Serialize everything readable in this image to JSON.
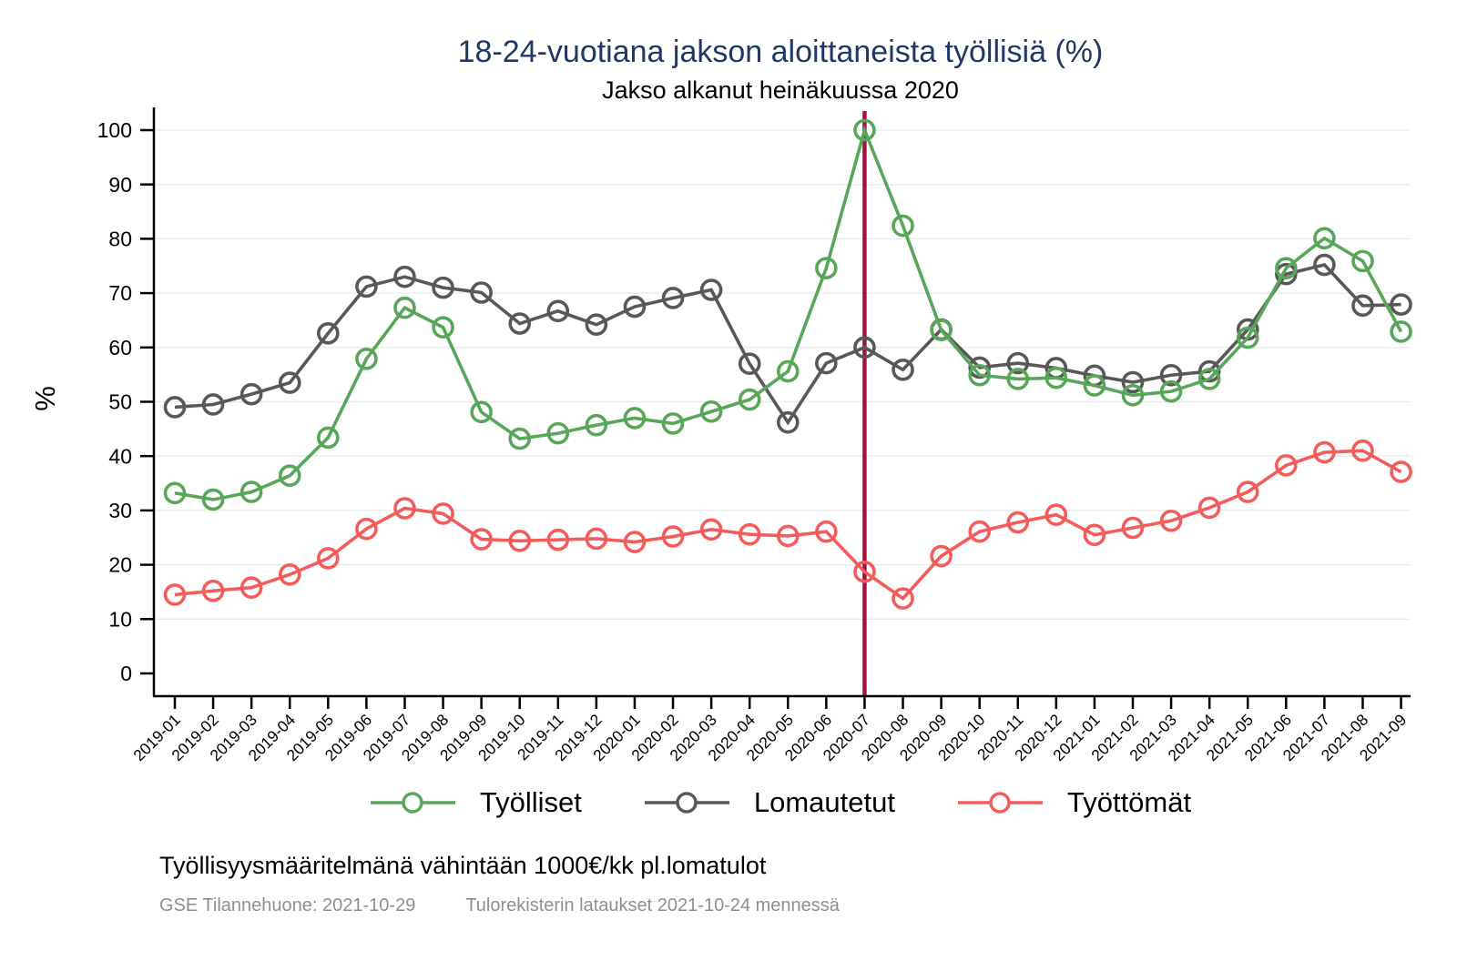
{
  "title": "18-24-vuotiana jakson aloittaneista työllisiä (%)",
  "subtitle": "Jakso alkanut heinäkuussa 2020",
  "ylabel": "%",
  "legend": [
    {
      "label": "Työlliset",
      "color": "#58a758"
    },
    {
      "label": "Lomautetut",
      "color": "#585858"
    },
    {
      "label": "Työttömät",
      "color": "#f45c5c"
    }
  ],
  "footnote": "Työllisyysmääritelmänä vähintään 1000€/kk pl.lomatulot",
  "source_left": "GSE Tilannehuone: 2021-10-29",
  "source_right": "Tulorekisterin lataukset 2021-10-24 mennessä",
  "colors": {
    "title": "#1f3864",
    "grid": "#eaeaea",
    "axis": "#000000",
    "vline": "#a31240",
    "source_text": "#8f8f8f"
  },
  "chart_data": {
    "type": "line",
    "title": "18-24-vuotiana jakson aloittaneista työllisiä (%)",
    "subtitle": "Jakso alkanut heinäkuussa 2020",
    "xlabel": "",
    "ylabel": "%",
    "ylim": [
      0,
      100
    ],
    "yticks": [
      0,
      10,
      20,
      30,
      40,
      50,
      60,
      70,
      80,
      90,
      100
    ],
    "grid": true,
    "legend_position": "bottom",
    "vline_x": "2020-07",
    "x": [
      "2019-01",
      "2019-02",
      "2019-03",
      "2019-04",
      "2019-05",
      "2019-06",
      "2019-07",
      "2019-08",
      "2019-09",
      "2019-10",
      "2019-11",
      "2019-12",
      "2020-01",
      "2020-02",
      "2020-03",
      "2020-04",
      "2020-05",
      "2020-06",
      "2020-07",
      "2020-08",
      "2020-09",
      "2020-10",
      "2020-11",
      "2020-12",
      "2021-01",
      "2021-02",
      "2021-03",
      "2021-04",
      "2021-05",
      "2021-06",
      "2021-07",
      "2021-08",
      "2021-09"
    ],
    "series": [
      {
        "name": "Työlliset",
        "color": "#58a758",
        "marker": "circle-hollow",
        "values": [
          33.2,
          32.0,
          33.4,
          36.4,
          43.4,
          57.9,
          67.3,
          63.7,
          48.1,
          43.2,
          44.2,
          45.7,
          47.0,
          46.0,
          48.2,
          50.4,
          55.6,
          74.6,
          100,
          82.4,
          63.2,
          54.9,
          54.2,
          54.4,
          53.0,
          51.2,
          51.9,
          54.2,
          61.8,
          74.6,
          80.1,
          75.9,
          62.9
        ]
      },
      {
        "name": "Lomautetut",
        "color": "#585858",
        "marker": "circle-hollow",
        "values": [
          49.0,
          49.5,
          51.4,
          53.5,
          62.6,
          71.2,
          73.0,
          71.0,
          70.1,
          64.4,
          66.7,
          64.2,
          67.5,
          69.1,
          70.6,
          57.0,
          46.2,
          57.1,
          60.0,
          55.9,
          63.3,
          56.3,
          57.1,
          56.2,
          54.8,
          53.6,
          54.9,
          55.6,
          63.3,
          73.5,
          75.2,
          67.7,
          67.9
        ]
      },
      {
        "name": "Työttömät",
        "color": "#f45c5c",
        "marker": "circle-hollow",
        "values": [
          14.5,
          15.2,
          15.8,
          18.2,
          21.2,
          26.6,
          30.4,
          29.4,
          24.7,
          24.4,
          24.6,
          24.8,
          24.2,
          25.2,
          26.5,
          25.6,
          25.3,
          26.1,
          18.7,
          13.8,
          21.6,
          26.1,
          27.8,
          29.2,
          25.5,
          26.8,
          28.1,
          30.5,
          33.4,
          38.3,
          40.7,
          41.0,
          37.1
        ]
      }
    ]
  }
}
